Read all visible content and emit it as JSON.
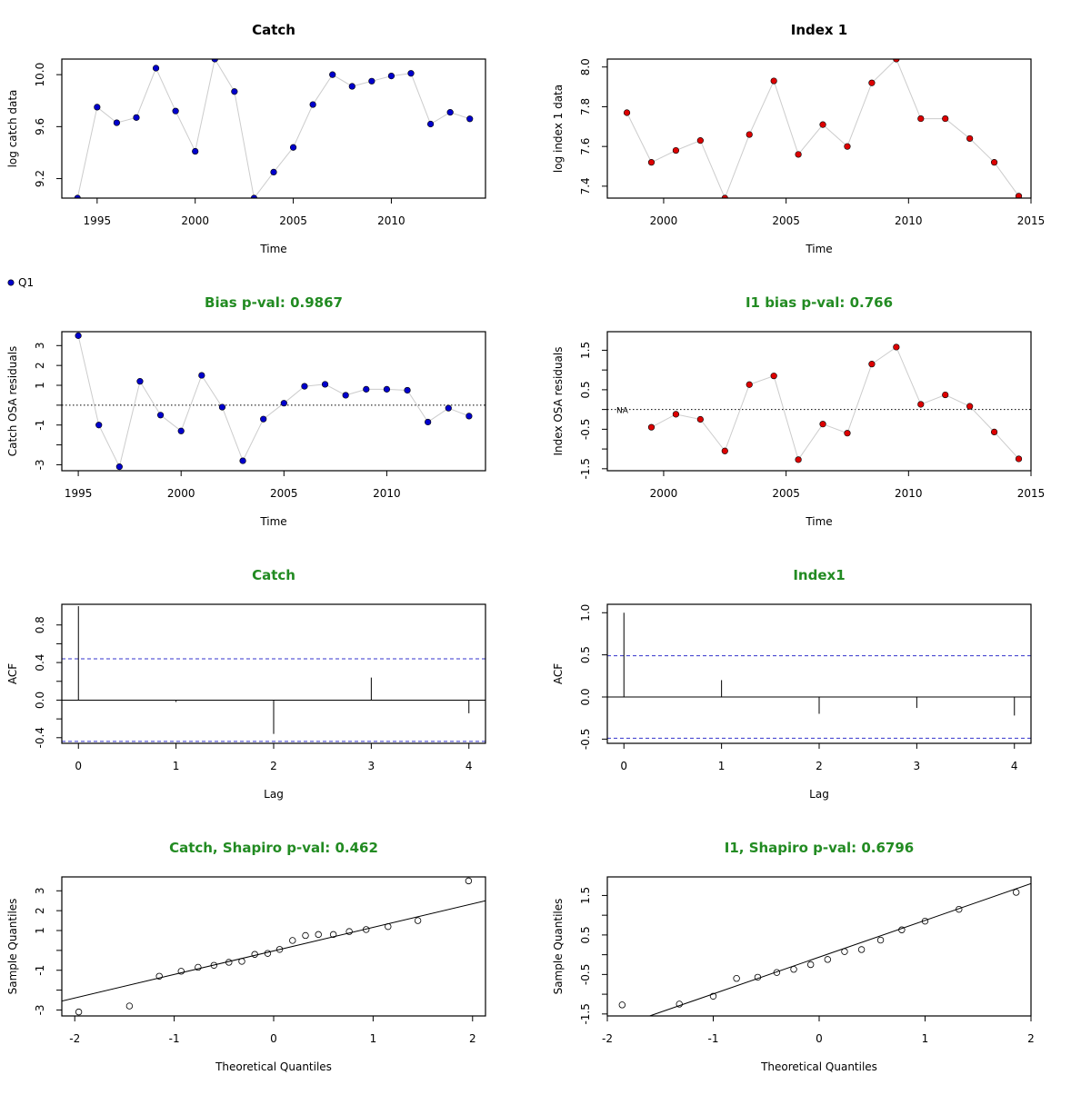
{
  "legend": {
    "label": "Q1"
  },
  "colors": {
    "blue": "#0000cc",
    "red": "#dd0000",
    "green": "#228b22",
    "line": "#cccccc",
    "dash": "#3333cc",
    "black": "#000000"
  },
  "chart_data": [
    {
      "type": "line",
      "title": "Catch",
      "xlabel": "Time",
      "ylabel": "log catch data",
      "xlim": [
        1993.2,
        2014.8
      ],
      "ylim": [
        9.05,
        10.12
      ],
      "xticks": [
        1995,
        2000,
        2005,
        2010
      ],
      "yticks": [
        9.2,
        9.6,
        10.0
      ],
      "ytick_labels": [
        "9.2",
        "9.6",
        "10.0"
      ],
      "point_color": "blue",
      "x": [
        1994,
        1995,
        1996,
        1997,
        1998,
        1999,
        2000,
        2001,
        2002,
        2003,
        2004,
        2005,
        2006,
        2007,
        2008,
        2009,
        2010,
        2011,
        2012,
        2013,
        2014
      ],
      "y": [
        9.05,
        9.75,
        9.63,
        9.67,
        10.05,
        9.72,
        9.41,
        10.12,
        9.87,
        9.05,
        9.25,
        9.44,
        9.77,
        10.0,
        9.91,
        9.95,
        9.99,
        10.01,
        9.62,
        9.71,
        9.66
      ]
    },
    {
      "type": "line",
      "title": "Index 1",
      "xlabel": "Time",
      "ylabel": "log index 1 data",
      "xlim": [
        1997.7,
        2015.0
      ],
      "ylim": [
        7.34,
        8.04
      ],
      "xticks": [
        2000,
        2005,
        2010,
        2015
      ],
      "yticks": [
        7.4,
        7.6,
        7.8,
        8.0
      ],
      "ytick_labels": [
        "7.4",
        "7.6",
        "7.8",
        "8.0"
      ],
      "point_color": "red",
      "x": [
        1998.5,
        1999.5,
        2000.5,
        2001.5,
        2002.5,
        2003.5,
        2004.5,
        2005.5,
        2006.5,
        2007.5,
        2008.5,
        2009.5,
        2010.5,
        2011.5,
        2012.5,
        2013.5,
        2014.5
      ],
      "y": [
        7.77,
        7.52,
        7.58,
        7.63,
        7.34,
        7.66,
        7.93,
        7.56,
        7.71,
        7.6,
        7.92,
        8.04,
        7.74,
        7.74,
        7.64,
        7.52,
        7.35
      ]
    },
    {
      "type": "line",
      "title": "Bias p-val: 0.9867",
      "title_color": "green",
      "xlabel": "Time",
      "ylabel": "Catch OSA residuals",
      "xlim": [
        1994.2,
        2014.8
      ],
      "ylim": [
        -3.3,
        3.7
      ],
      "xticks": [
        1995,
        2000,
        2005,
        2010
      ],
      "yticks": [
        -3,
        -2,
        -1,
        0,
        1,
        2,
        3
      ],
      "ytick_labels": [
        "-3",
        "",
        "-1",
        "",
        "1",
        "2",
        "3"
      ],
      "zero_line": true,
      "point_color": "blue",
      "x": [
        1995,
        1996,
        1997,
        1998,
        1999,
        2000,
        2001,
        2002,
        2003,
        2004,
        2005,
        2006,
        2007,
        2008,
        2009,
        2010,
        2011,
        2012,
        2013,
        2014
      ],
      "y": [
        3.5,
        -1.0,
        -3.1,
        1.2,
        -0.5,
        -1.3,
        1.5,
        -0.1,
        -2.8,
        -0.7,
        0.1,
        0.95,
        1.05,
        0.5,
        0.8,
        0.8,
        0.75,
        -0.85,
        -0.15,
        -0.55
      ]
    },
    {
      "type": "line",
      "title": "I1 bias p-val: 0.766",
      "title_color": "green",
      "xlabel": "Time",
      "ylabel": "Index OSA residuals",
      "xlim": [
        1997.7,
        2015.0
      ],
      "ylim": [
        -1.55,
        1.97
      ],
      "xticks": [
        2000,
        2005,
        2010,
        2015
      ],
      "yticks": [
        -1.5,
        -1.0,
        -0.5,
        0.0,
        0.5,
        1.0,
        1.5
      ],
      "ytick_labels": [
        "-1.5",
        "",
        "-0.5",
        "",
        "0.5",
        "",
        "1.5"
      ],
      "zero_line": true,
      "na_label": "NA",
      "point_color": "red",
      "x": [
        1999.5,
        2000.5,
        2001.5,
        2002.5,
        2003.5,
        2004.5,
        2005.5,
        2006.5,
        2007.5,
        2008.5,
        2009.5,
        2010.5,
        2011.5,
        2012.5,
        2013.5,
        2014.5
      ],
      "y": [
        -0.45,
        -0.12,
        -0.25,
        -1.05,
        0.63,
        0.85,
        -1.27,
        -0.37,
        -0.6,
        1.15,
        1.58,
        0.13,
        0.37,
        0.08,
        -0.57,
        -1.25
      ]
    },
    {
      "type": "bar",
      "title": "Catch",
      "title_color": "green",
      "xlabel": "Lag",
      "ylabel": "ACF",
      "xlim": [
        -0.17,
        4.17
      ],
      "ylim": [
        -0.46,
        1.02
      ],
      "xticks": [
        0,
        1,
        2,
        3,
        4
      ],
      "yticks": [
        -0.4,
        -0.2,
        0.0,
        0.2,
        0.4,
        0.6,
        0.8
      ],
      "ytick_labels": [
        "-0.4",
        "",
        "0.0",
        "",
        "0.4",
        "",
        "0.8"
      ],
      "confidence_band": 0.44,
      "x": [
        0,
        1,
        2,
        3,
        4
      ],
      "values": [
        1.0,
        -0.02,
        -0.36,
        0.24,
        -0.14
      ]
    },
    {
      "type": "bar",
      "title": "Index1",
      "title_color": "green",
      "xlabel": "Lag",
      "ylabel": "ACF",
      "xlim": [
        -0.17,
        4.17
      ],
      "ylim": [
        -0.55,
        1.1
      ],
      "xticks": [
        0,
        1,
        2,
        3,
        4
      ],
      "yticks": [
        -0.5,
        0.0,
        0.5,
        1.0
      ],
      "ytick_labels": [
        "-0.5",
        "0.0",
        "0.5",
        "1.0"
      ],
      "confidence_band": 0.49,
      "x": [
        0,
        1,
        2,
        3,
        4
      ],
      "values": [
        1.0,
        0.2,
        -0.2,
        -0.13,
        -0.22
      ]
    },
    {
      "type": "scatter",
      "title": "Catch, Shapiro p-val: 0.462",
      "title_color": "green",
      "xlabel": "Theoretical Quantiles",
      "ylabel": "Sample Quantiles",
      "xlim": [
        -2.13,
        2.13
      ],
      "ylim": [
        -3.3,
        3.7
      ],
      "xticks": [
        -2,
        -1,
        0,
        1,
        2
      ],
      "yticks": [
        -3,
        -2,
        -1,
        0,
        1,
        2,
        3
      ],
      "ytick_labels": [
        "-3",
        "",
        "-1",
        "",
        "1",
        "2",
        "3"
      ],
      "ref_line": [
        [
          -2.13,
          -2.55
        ],
        [
          2.13,
          2.5
        ]
      ],
      "x": [
        -1.96,
        -1.45,
        -1.15,
        -0.93,
        -0.76,
        -0.6,
        -0.45,
        -0.32,
        -0.19,
        -0.06,
        0.06,
        0.19,
        0.32,
        0.45,
        0.6,
        0.76,
        0.93,
        1.15,
        1.45,
        1.96
      ],
      "y": [
        -3.1,
        -2.8,
        -1.3,
        -1.05,
        -0.85,
        -0.75,
        -0.6,
        -0.55,
        -0.2,
        -0.15,
        0.05,
        0.5,
        0.75,
        0.8,
        0.8,
        0.95,
        1.05,
        1.2,
        1.5,
        3.5
      ]
    },
    {
      "type": "scatter",
      "title": "I1, Shapiro p-val: 0.6796",
      "title_color": "green",
      "xlabel": "Theoretical Quantiles",
      "ylabel": "Sample Quantiles",
      "xlim": [
        -2.0,
        2.0
      ],
      "ylim": [
        -1.55,
        1.97
      ],
      "xticks": [
        -2,
        -1,
        0,
        1,
        2
      ],
      "yticks": [
        -1.5,
        -1.0,
        -0.5,
        0.0,
        0.5,
        1.0,
        1.5
      ],
      "ytick_labels": [
        "-1.5",
        "",
        "-0.5",
        "",
        "0.5",
        "",
        "1.5"
      ],
      "ref_line": [
        [
          -1.6,
          -1.55
        ],
        [
          2.0,
          1.8
        ]
      ],
      "x": [
        -1.86,
        -1.32,
        -1.0,
        -0.78,
        -0.58,
        -0.4,
        -0.24,
        -0.08,
        0.08,
        0.24,
        0.4,
        0.58,
        0.78,
        1.0,
        1.32,
        1.86
      ],
      "y": [
        -1.27,
        -1.25,
        -1.05,
        -0.6,
        -0.57,
        -0.45,
        -0.37,
        -0.25,
        -0.12,
        0.08,
        0.13,
        0.37,
        0.63,
        0.85,
        1.15,
        1.58
      ]
    }
  ]
}
